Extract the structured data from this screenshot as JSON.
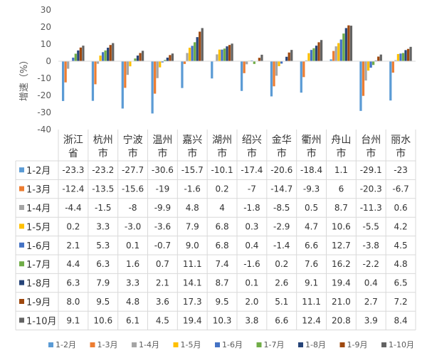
{
  "chart_data": {
    "type": "bar",
    "title": "",
    "xlabel": "",
    "ylabel": "增速（%）",
    "ylim": [
      -40,
      30
    ],
    "yticks": [
      30,
      20,
      10,
      0,
      -10,
      -20,
      -30,
      -40
    ],
    "grid": false,
    "legend": "bottom",
    "categories": [
      "浙江省",
      "杭州市",
      "宁波市",
      "温州市",
      "嘉兴市",
      "湖州市",
      "绍兴市",
      "金华市",
      "衢州市",
      "舟山市",
      "台州市",
      "丽水市"
    ],
    "series": [
      {
        "name": "1-2月",
        "color": "#5B9BD5",
        "values": [
          -23.3,
          -23.2,
          -27.7,
          -30.6,
          -15.7,
          -10.1,
          -17.4,
          -20.6,
          -18.4,
          1.1,
          -29.1,
          -23
        ]
      },
      {
        "name": "1-3月",
        "color": "#ED7D31",
        "values": [
          -12.4,
          -13.5,
          -15.6,
          -19,
          -1.6,
          0.2,
          -7,
          -14.7,
          -9.3,
          6,
          -20.3,
          -6.7
        ]
      },
      {
        "name": "1-4月",
        "color": "#A5A5A5",
        "values": [
          -4.4,
          -1.5,
          -8,
          -9.9,
          4.8,
          4,
          -1.8,
          -8.5,
          0.5,
          8.7,
          -11.3,
          0.6
        ]
      },
      {
        "name": "1-5月",
        "color": "#FFC000",
        "values": [
          0.2,
          3.3,
          -3.0,
          -3.6,
          7.9,
          6.8,
          0.3,
          -2.9,
          4.7,
          10.6,
          -5.5,
          4.2
        ]
      },
      {
        "name": "1-6月",
        "color": "#4472C4",
        "values": [
          2.1,
          5.3,
          0.1,
          -0.7,
          9.0,
          6.8,
          0.4,
          -1.4,
          6.6,
          12.7,
          -3.8,
          4.5
        ]
      },
      {
        "name": "1-7月",
        "color": "#70AD47",
        "values": [
          4.4,
          6.3,
          1.6,
          0.7,
          11.1,
          7.4,
          -1.6,
          0.2,
          7.6,
          16.2,
          -2.2,
          4.8
        ]
      },
      {
        "name": "1-8月",
        "color": "#264478",
        "values": [
          6.3,
          7.9,
          3.3,
          2.1,
          14.1,
          8.7,
          0.1,
          2.6,
          9.1,
          19.4,
          0.4,
          6.5
        ]
      },
      {
        "name": "1-9月",
        "color": "#9E480E",
        "values": [
          8.0,
          9.5,
          4.8,
          3.6,
          17.3,
          9.5,
          2.0,
          5.1,
          11.1,
          21.0,
          2.7,
          7.2
        ]
      },
      {
        "name": "1-10月",
        "color": "#636363",
        "values": [
          9.1,
          10.6,
          6.1,
          4.5,
          19.4,
          10.3,
          3.8,
          6.6,
          12.4,
          20.8,
          3.9,
          8.4
        ]
      }
    ],
    "table_values": [
      [
        "-23.3",
        "-23.2",
        "-27.7",
        "-30.6",
        "-15.7",
        "-10.1",
        "-17.4",
        "-20.6",
        "-18.4",
        "1.1",
        "-29.1",
        "-23"
      ],
      [
        "-12.4",
        "-13.5",
        "-15.6",
        "-19",
        "-1.6",
        "0.2",
        "-7",
        "-14.7",
        "-9.3",
        "6",
        "-20.3",
        "-6.7"
      ],
      [
        "-4.4",
        "-1.5",
        "-8",
        "-9.9",
        "4.8",
        "4",
        "-1.8",
        "-8.5",
        "0.5",
        "8.7",
        "-11.3",
        "0.6"
      ],
      [
        "0.2",
        "3.3",
        "-3.0",
        "-3.6",
        "7.9",
        "6.8",
        "0.3",
        "-2.9",
        "4.7",
        "10.6",
        "-5.5",
        "4.2"
      ],
      [
        "2.1",
        "5.3",
        "0.1",
        "-0.7",
        "9.0",
        "6.8",
        "0.4",
        "-1.4",
        "6.6",
        "12.7",
        "-3.8",
        "4.5"
      ],
      [
        "4.4",
        "6.3",
        "1.6",
        "0.7",
        "11.1",
        "7.4",
        "-1.6",
        "0.2",
        "7.6",
        "16.2",
        "-2.2",
        "4.8"
      ],
      [
        "6.3",
        "7.9",
        "3.3",
        "2.1",
        "14.1",
        "8.7",
        "0.1",
        "2.6",
        "9.1",
        "19.4",
        "0.4",
        "6.5"
      ],
      [
        "8.0",
        "9.5",
        "4.8",
        "3.6",
        "17.3",
        "9.5",
        "2.0",
        "5.1",
        "11.1",
        "21.0",
        "2.7",
        "7.2"
      ],
      [
        "9.1",
        "10.6",
        "6.1",
        "4.5",
        "19.4",
        "10.3",
        "3.8",
        "6.6",
        "12.4",
        "20.8",
        "3.9",
        "8.4"
      ]
    ]
  }
}
